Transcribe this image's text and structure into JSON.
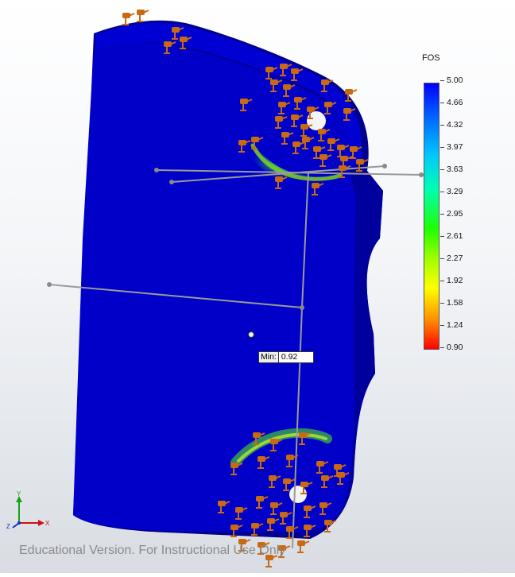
{
  "legend": {
    "title": "FOS",
    "ticks": [
      "5.00",
      "4.66",
      "4.32",
      "3.97",
      "3.63",
      "3.29",
      "2.95",
      "2.61",
      "2.27",
      "1.92",
      "1.58",
      "1.24",
      "0.90"
    ],
    "max": 5.0,
    "min": 0.9
  },
  "probe": {
    "key": "Min:",
    "value": "0.92"
  },
  "watermark": "Educational Version. For Instructional Use Only",
  "triad": {
    "x": "X",
    "y": "Y",
    "z": "Z"
  },
  "colors": {
    "part_blue": "#0000c8",
    "edge_blue": "#000070",
    "fixture": "#c86a14",
    "leader_line": "#999999"
  }
}
